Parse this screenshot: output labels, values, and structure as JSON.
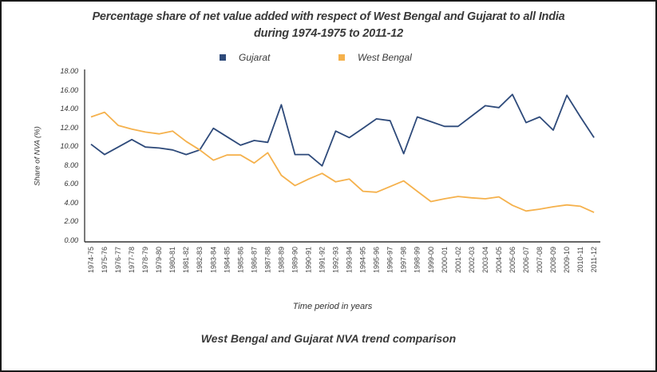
{
  "chart_data": {
    "type": "line",
    "title": "Percentage share of net value added with respect of West Bengal and Gujarat to all India",
    "subtitle": "during 1974-1975 to 2011-12",
    "xlabel": "Time period in years",
    "ylabel": "Share of NVA (%)",
    "caption": "West Bengal and Gujarat NVA trend comparison",
    "ylim": [
      0,
      18
    ],
    "yticks": [
      "0.00",
      "2.00",
      "4.00",
      "6.00",
      "8.00",
      "10.00",
      "12.00",
      "14.00",
      "16.00",
      "18.00"
    ],
    "grid": false,
    "legend_position": "top-center",
    "categories": [
      "1974-75",
      "1975-76",
      "1976-77",
      "1977-78",
      "1978-79",
      "1979-80",
      "1980-81",
      "1981-82",
      "1982-83",
      "1983-84",
      "1984-85",
      "1985-86",
      "1986-87",
      "1987-88",
      "1988-89",
      "1989-90",
      "1990-91",
      "1991-92",
      "1992-93",
      "1993-94",
      "1994-95",
      "1995-96",
      "1996-97",
      "1997-98",
      "1998-99",
      "1999-00",
      "2000-01",
      "2001-02",
      "2002-03",
      "2003-04",
      "2004-05",
      "2005-06",
      "2006-07",
      "2007-08",
      "2008-09",
      "2009-10",
      "2010-11",
      "2011-12"
    ],
    "series": [
      {
        "name": "Gujarat",
        "color": "#2e4a7a",
        "values": [
          10.3,
          9.2,
          10.0,
          10.8,
          10.0,
          9.9,
          9.7,
          9.2,
          9.7,
          12.0,
          11.1,
          10.2,
          10.7,
          10.5,
          14.5,
          9.2,
          9.2,
          8.0,
          11.7,
          11.0,
          12.0,
          13.0,
          12.8,
          9.3,
          13.2,
          12.7,
          12.2,
          12.2,
          13.3,
          14.4,
          14.2,
          15.6,
          12.6,
          13.2,
          11.8,
          15.5,
          13.2,
          11.0
        ]
      },
      {
        "name": "West Bengal",
        "color": "#f5b14c",
        "values": [
          13.2,
          13.7,
          12.3,
          11.9,
          11.6,
          11.4,
          11.7,
          10.6,
          9.7,
          8.6,
          9.15,
          9.15,
          8.3,
          9.4,
          7.0,
          5.9,
          6.6,
          7.2,
          6.3,
          6.6,
          5.3,
          5.2,
          5.8,
          6.4,
          5.3,
          4.2,
          4.5,
          4.75,
          4.6,
          4.5,
          4.7,
          3.8,
          3.2,
          3.4,
          3.65,
          3.85,
          3.7,
          3.05
        ]
      }
    ]
  }
}
